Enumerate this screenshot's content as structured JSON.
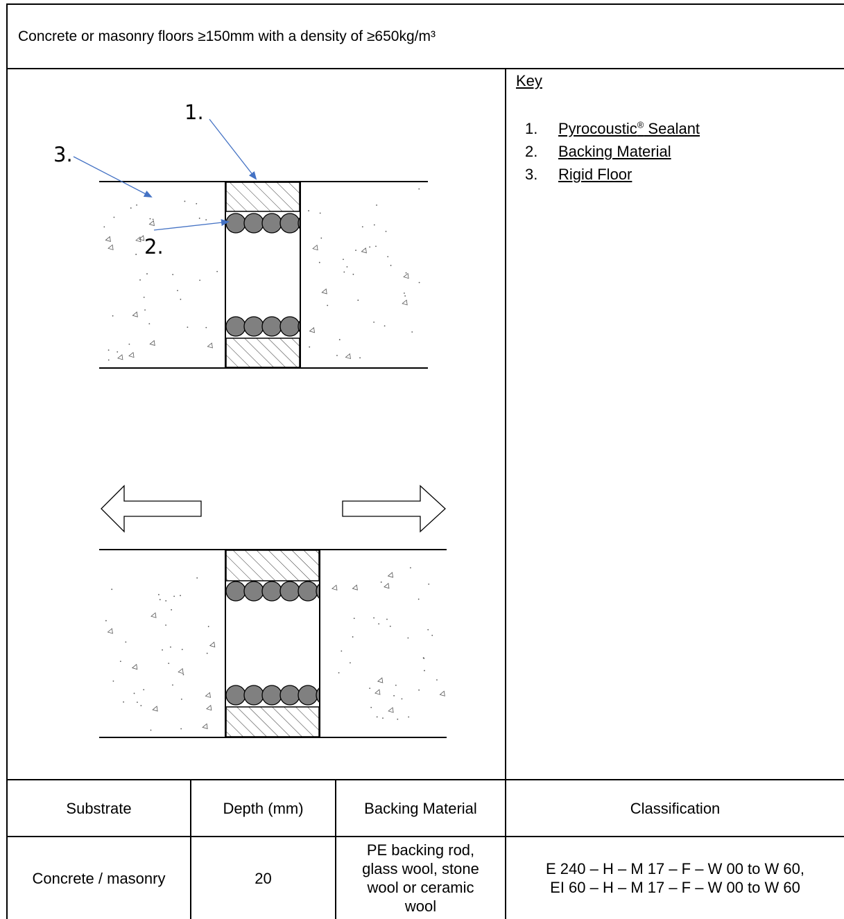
{
  "title": "Concrete or masonry floors ≥150mm with a density of ≥650kg/m³",
  "key": {
    "heading": "Key",
    "items": [
      {
        "num": "1.",
        "label": "Pyrocoustic",
        "sup": "®",
        "label_rest": " Sealant"
      },
      {
        "num": "2.",
        "label": "Backing Material",
        "sup": "",
        "label_rest": ""
      },
      {
        "num": "3.",
        "label": "Rigid Floor",
        "sup": "",
        "label_rest": ""
      }
    ]
  },
  "diagram": {
    "callouts": [
      "1.",
      "2.",
      "3."
    ]
  },
  "table": {
    "headers": [
      "Substrate",
      "Depth (mm)",
      "Backing Material",
      "Classification"
    ],
    "row": {
      "substrate": "Concrete / masonry",
      "depth": "20",
      "backing": [
        "PE backing rod,",
        "glass wool, stone",
        "wool or ceramic",
        "wool"
      ],
      "classification": [
        "E 240 – H – M 17 – F – W 00 to W 60,",
        "EI 60 – H – M 17 – F – W 00 to W 60"
      ]
    }
  },
  "colors": {
    "arrow": "#4472c4",
    "rod": "#808080",
    "line": "#000000"
  }
}
